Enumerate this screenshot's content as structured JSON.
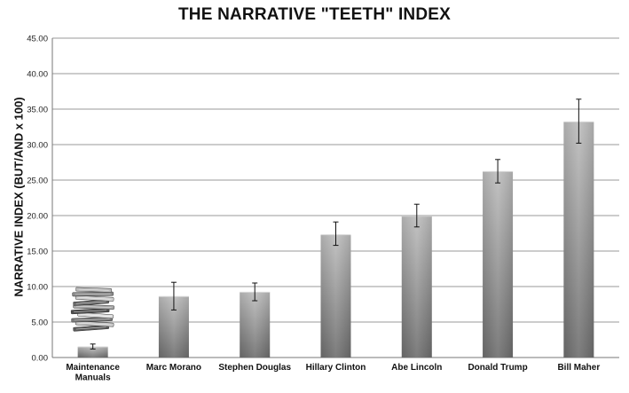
{
  "chart_data": {
    "type": "bar",
    "title": "THE NARRATIVE \"TEETH\" INDEX",
    "xlabel": "",
    "ylabel": "NARRATIVE INDEX (BUT/AND x 100)",
    "categories": [
      "Maintenance Manuals",
      "Marc Morano",
      "Stephen Douglas",
      "Hillary Clinton",
      "Abe Lincoln",
      "Donald Trump",
      "Bill Maher"
    ],
    "category_lines": [
      [
        "Maintenance",
        "Manuals"
      ],
      [
        "Marc Morano"
      ],
      [
        "Stephen Douglas"
      ],
      [
        "Hillary Clinton"
      ],
      [
        "Abe Lincoln"
      ],
      [
        "Donald Trump"
      ],
      [
        "Bill Maher"
      ]
    ],
    "values": [
      1.5,
      8.6,
      9.2,
      17.3,
      19.9,
      26.2,
      33.2
    ],
    "error_low": [
      1.2,
      6.7,
      8.0,
      15.8,
      18.4,
      24.6,
      30.2
    ],
    "error_high": [
      1.9,
      10.6,
      10.5,
      19.1,
      21.6,
      27.9,
      36.4
    ],
    "ylim": [
      0,
      45
    ],
    "yticks": [
      "0.00",
      "5.00",
      "10.00",
      "15.00",
      "20.00",
      "25.00",
      "30.00",
      "35.00",
      "40.00",
      "45.00"
    ],
    "grid": true,
    "legend": "none",
    "bar_color_top": "#bdbdbd",
    "bar_color_bottom": "#6e6e6e",
    "annotation_image": "books-stack-icon"
  }
}
